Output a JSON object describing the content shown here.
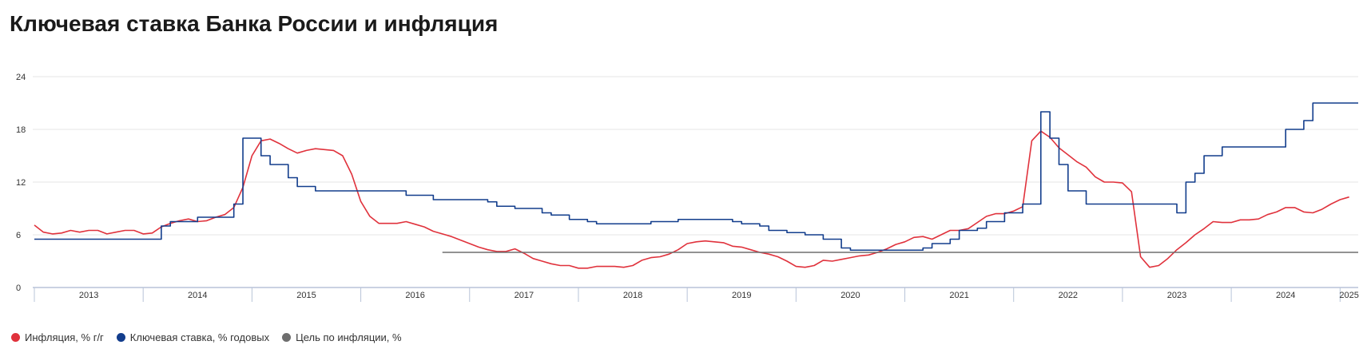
{
  "title": "Ключевая ставка Банка России и инфляция",
  "colors": {
    "inflation": "#e0323c",
    "key_rate": "#123d8c",
    "target": "#6e6e6e",
    "grid": "#e6e6e6",
    "axis": "#b8c4d8"
  },
  "chart_data": {
    "type": "line",
    "title": "Ключевая ставка Банка России и инфляция",
    "xlabel": "",
    "ylabel": "",
    "xlim": [
      "2013-01",
      "2025-03"
    ],
    "ylim": [
      0,
      24
    ],
    "y_ticks": [
      "0",
      "6",
      "12",
      "18",
      "24"
    ],
    "x_tick_labels": [
      "2013",
      "2014",
      "2015",
      "2016",
      "2017",
      "2018",
      "2019",
      "2020",
      "2021",
      "2022",
      "2023",
      "2024",
      "2025"
    ],
    "grid": true,
    "legend_position": "bottom-left",
    "series": [
      {
        "name": "Инфляция, % г/г",
        "kind": "line",
        "x": [
          "2013-01",
          "2013-02",
          "2013-03",
          "2013-04",
          "2013-05",
          "2013-06",
          "2013-07",
          "2013-08",
          "2013-09",
          "2013-10",
          "2013-11",
          "2013-12",
          "2014-01",
          "2014-02",
          "2014-03",
          "2014-04",
          "2014-05",
          "2014-06",
          "2014-07",
          "2014-08",
          "2014-09",
          "2014-10",
          "2014-11",
          "2014-12",
          "2015-01",
          "2015-02",
          "2015-03",
          "2015-04",
          "2015-05",
          "2015-06",
          "2015-07",
          "2015-08",
          "2015-09",
          "2015-10",
          "2015-11",
          "2015-12",
          "2016-01",
          "2016-02",
          "2016-03",
          "2016-04",
          "2016-05",
          "2016-06",
          "2016-07",
          "2016-08",
          "2016-09",
          "2016-10",
          "2016-11",
          "2016-12",
          "2017-01",
          "2017-02",
          "2017-03",
          "2017-04",
          "2017-05",
          "2017-06",
          "2017-07",
          "2017-08",
          "2017-09",
          "2017-10",
          "2017-11",
          "2017-12",
          "2018-01",
          "2018-02",
          "2018-03",
          "2018-04",
          "2018-05",
          "2018-06",
          "2018-07",
          "2018-08",
          "2018-09",
          "2018-10",
          "2018-11",
          "2018-12",
          "2019-01",
          "2019-02",
          "2019-03",
          "2019-04",
          "2019-05",
          "2019-06",
          "2019-07",
          "2019-08",
          "2019-09",
          "2019-10",
          "2019-11",
          "2019-12",
          "2020-01",
          "2020-02",
          "2020-03",
          "2020-04",
          "2020-05",
          "2020-06",
          "2020-07",
          "2020-08",
          "2020-09",
          "2020-10",
          "2020-11",
          "2020-12",
          "2021-01",
          "2021-02",
          "2021-03",
          "2021-04",
          "2021-05",
          "2021-06",
          "2021-07",
          "2021-08",
          "2021-09",
          "2021-10",
          "2021-11",
          "2021-12",
          "2022-01",
          "2022-02",
          "2022-03",
          "2022-04",
          "2022-05",
          "2022-06",
          "2022-07",
          "2022-08",
          "2022-09",
          "2022-10",
          "2022-11",
          "2022-12",
          "2023-01",
          "2023-02",
          "2023-03",
          "2023-04",
          "2023-05",
          "2023-06",
          "2023-07",
          "2023-08",
          "2023-09",
          "2023-10",
          "2023-11",
          "2023-12",
          "2024-01",
          "2024-02",
          "2024-03",
          "2024-04",
          "2024-05",
          "2024-06",
          "2024-07",
          "2024-08",
          "2024-09",
          "2024-10",
          "2024-11",
          "2024-12",
          "2025-01",
          "2025-02"
        ],
        "values": [
          7.1,
          6.3,
          6.1,
          6.2,
          6.5,
          6.3,
          6.5,
          6.5,
          6.1,
          6.3,
          6.5,
          6.5,
          6.1,
          6.2,
          6.9,
          7.3,
          7.6,
          7.8,
          7.5,
          7.6,
          8.0,
          8.3,
          9.1,
          11.4,
          15.0,
          16.7,
          16.9,
          16.4,
          15.8,
          15.3,
          15.6,
          15.8,
          15.7,
          15.6,
          15.0,
          12.9,
          9.8,
          8.1,
          7.3,
          7.3,
          7.3,
          7.5,
          7.2,
          6.9,
          6.4,
          6.1,
          5.8,
          5.4,
          5.0,
          4.6,
          4.3,
          4.1,
          4.1,
          4.4,
          3.9,
          3.3,
          3.0,
          2.7,
          2.5,
          2.5,
          2.2,
          2.2,
          2.4,
          2.4,
          2.4,
          2.3,
          2.5,
          3.1,
          3.4,
          3.5,
          3.8,
          4.3,
          5.0,
          5.2,
          5.3,
          5.2,
          5.1,
          4.7,
          4.6,
          4.3,
          4.0,
          3.8,
          3.5,
          3.0,
          2.4,
          2.3,
          2.5,
          3.1,
          3.0,
          3.2,
          3.4,
          3.6,
          3.7,
          4.0,
          4.4,
          4.9,
          5.2,
          5.7,
          5.8,
          5.5,
          6.0,
          6.5,
          6.5,
          6.7,
          7.4,
          8.1,
          8.4,
          8.4,
          8.7,
          9.2,
          16.7,
          17.8,
          17.1,
          15.9,
          15.1,
          14.3,
          13.7,
          12.6,
          12.0,
          12.0,
          11.9,
          10.9,
          3.5,
          2.3,
          2.5,
          3.3,
          4.3,
          5.1,
          6.0,
          6.7,
          7.5,
          7.4,
          7.4,
          7.7,
          7.7,
          7.8,
          8.3,
          8.6,
          9.1,
          9.1,
          8.6,
          8.5,
          8.9,
          9.5,
          10.0,
          10.3
        ]
      },
      {
        "name": "Ключевая ставка, % годовых",
        "kind": "step",
        "x": [
          "2013-01",
          "2013-09",
          "2014-03",
          "2014-04",
          "2014-07",
          "2014-11",
          "2014-12",
          "2015-02",
          "2015-03",
          "2015-05",
          "2015-06",
          "2015-08",
          "2016-06",
          "2016-09",
          "2017-03",
          "2017-04",
          "2017-06",
          "2017-09",
          "2017-10",
          "2017-12",
          "2018-02",
          "2018-03",
          "2018-09",
          "2018-12",
          "2019-06",
          "2019-07",
          "2019-09",
          "2019-10",
          "2019-12",
          "2020-02",
          "2020-04",
          "2020-06",
          "2020-07",
          "2021-03",
          "2021-04",
          "2021-06",
          "2021-07",
          "2021-09",
          "2021-10",
          "2021-12",
          "2022-02",
          "2022-04",
          "2022-05",
          "2022-06",
          "2022-07",
          "2022-09",
          "2023-07",
          "2023-08",
          "2023-09",
          "2023-10",
          "2023-12",
          "2024-07",
          "2024-09",
          "2024-10",
          "2025-02"
        ],
        "values": [
          5.5,
          5.5,
          7.0,
          7.5,
          8.0,
          9.5,
          17.0,
          15.0,
          14.0,
          12.5,
          11.5,
          11.0,
          10.5,
          10.0,
          9.75,
          9.25,
          9.0,
          8.5,
          8.25,
          7.75,
          7.5,
          7.25,
          7.5,
          7.75,
          7.5,
          7.25,
          7.0,
          6.5,
          6.25,
          6.0,
          5.5,
          4.5,
          4.25,
          4.5,
          5.0,
          5.5,
          6.5,
          6.75,
          7.5,
          8.5,
          9.5,
          20.0,
          17.0,
          14.0,
          11.0,
          9.5,
          8.5,
          12.0,
          13.0,
          15.0,
          16.0,
          18.0,
          19.0,
          21.0,
          21.0
        ]
      },
      {
        "name": "Цель по инфляции, %",
        "kind": "constant",
        "x": [
          "2016-10",
          "2025-03"
        ],
        "values": [
          4,
          4
        ]
      }
    ]
  }
}
